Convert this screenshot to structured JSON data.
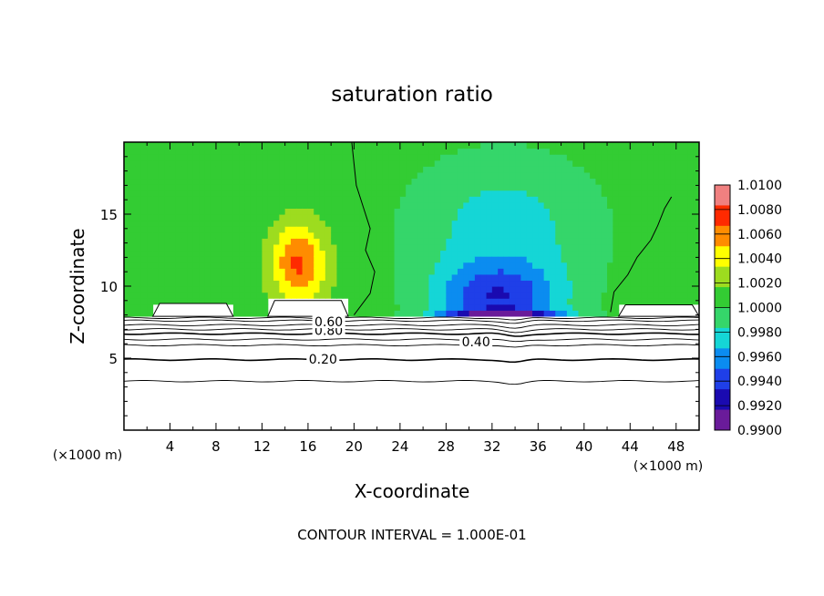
{
  "chart_data": {
    "type": "heatmap",
    "title": "saturation ratio",
    "xlabel": "X-coordinate",
    "ylabel": "Z-coordinate",
    "x_unit_left": "(×1000 m)",
    "x_unit_right": "(×1000 m)",
    "xlim": [
      0,
      50
    ],
    "ylim": [
      0,
      20
    ],
    "x_ticks": [
      4,
      8,
      12,
      16,
      20,
      24,
      28,
      32,
      36,
      40,
      44,
      48
    ],
    "y_ticks": [
      5,
      10,
      15
    ],
    "footer": "CONTOUR INTERVAL = 1.000E-01",
    "colorbar": {
      "levels": [
        "1.0100",
        "1.0080",
        "1.0060",
        "1.0040",
        "1.0020",
        "1.0000",
        "0.9980",
        "0.9960",
        "0.9940",
        "0.9920",
        "0.9900"
      ],
      "range": [
        0.99,
        1.01
      ]
    },
    "contour_labels": [
      {
        "text": "0.80",
        "x": 17.8,
        "z": 6.8
      },
      {
        "text": "0.60",
        "x": 17.8,
        "z": 7.4
      },
      {
        "text": "0.40",
        "x": 30.6,
        "z": 6.0
      },
      {
        "text": "0.20",
        "x": 17.3,
        "z": 4.8
      }
    ],
    "contour_lines_z": [
      3.4,
      4.9,
      5.9,
      6.3,
      6.7,
      7.0,
      7.3,
      7.6,
      7.8
    ],
    "field": {
      "background": 1.0008,
      "features": [
        {
          "name": "moist plume",
          "x": 15.2,
          "z": 11.6,
          "value": 1.007,
          "sx": 2.4,
          "sz": 2.8
        },
        {
          "name": "dry region",
          "x": 32.5,
          "z": 9.2,
          "value": 0.9945,
          "sx": 5.5,
          "sz": 2.4
        },
        {
          "name": "dry band",
          "x": 33.0,
          "z": 7.8,
          "value": 0.9915,
          "sx": 5.0,
          "sz": 0.5
        },
        {
          "name": "slightly dry upper region",
          "x": 33.0,
          "z": 14.0,
          "value": 0.9975,
          "sx": 8.0,
          "sz": 5.0
        }
      ]
    }
  }
}
